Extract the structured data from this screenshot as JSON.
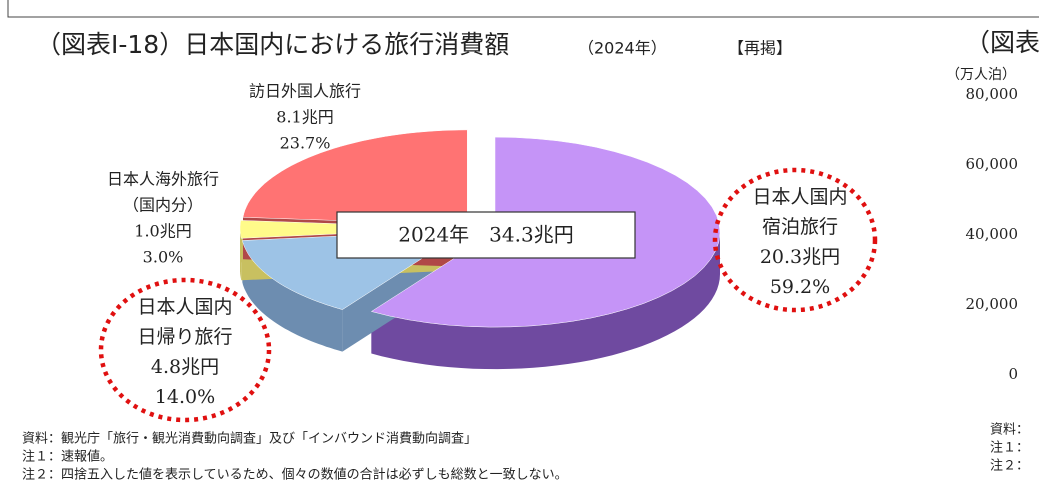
{
  "chart_data": [
    {
      "type": "pie",
      "title": "（図表Ⅰ-18）日本国内における旅行消費額",
      "subtitle": "（2024年）",
      "tag": "【再掲】",
      "center_label": "2024年　34.3兆円",
      "categories": [
        [
          "日本人国内",
          "宿泊旅行"
        ],
        [
          "日本人国内",
          "日帰り旅行"
        ],
        [
          "日本人海外旅行",
          "（国内分）"
        ],
        [
          "訪日外国人旅行"
        ]
      ],
      "values": [
        59.2,
        14.0,
        3.0,
        23.7
      ],
      "value_labels": [
        "59.2%",
        "14.0%",
        "3.0%",
        "23.7%"
      ],
      "amounts": [
        20.3,
        4.8,
        1.0,
        8.1
      ],
      "amount_labels": [
        "20.3兆円",
        "4.8兆円",
        "1.0兆円",
        "8.1兆円"
      ],
      "colors": [
        "#c594f7",
        "#9dc3e6",
        "#fffb8a",
        "#ff7373"
      ],
      "side_colors": [
        "#6f4aa0",
        "#6d8db0",
        "#c8c060",
        "#b04848"
      ],
      "notes": [
        "資料：観光庁「旅行・観光消費動向調査」及び「インバウンド消費動向調査」",
        "注１：速報値。",
        "注２：四捨五入した値を表示しているため、個々の数値の合計は必ずしも総数と一致しない。"
      ]
    },
    {
      "type": "bar",
      "title": "（図表",
      "y_axis_label": "（万人泊）",
      "ylim": [
        0,
        80000
      ],
      "yticks": [
        0,
        {
          "value": 20000,
          "label": "20,000"
        },
        {
          "value": 40000,
          "label": "40,000"
        },
        {
          "value": 60000,
          "label": "60,000"
        },
        {
          "value": 80000,
          "label": "80,000"
        }
      ],
      "notes": [
        "資料：",
        "注１：",
        "注２："
      ]
    }
  ]
}
